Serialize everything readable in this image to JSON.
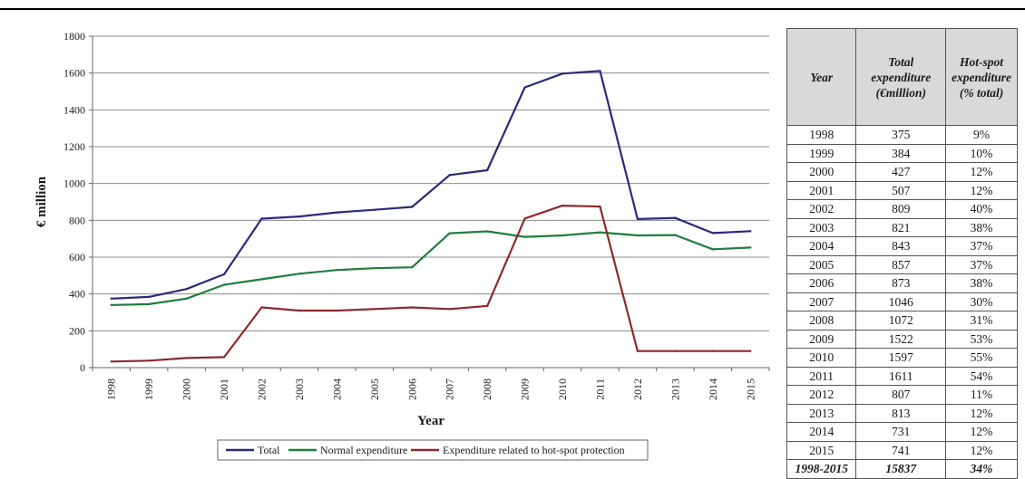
{
  "chart_data": {
    "type": "line",
    "xlabel": "Year",
    "ylabel": "€ million",
    "ylim": [
      0,
      1800
    ],
    "yticks": [
      0,
      200,
      400,
      600,
      800,
      1000,
      1200,
      1400,
      1600,
      1800
    ],
    "grid": true,
    "legend_position": "bottom",
    "categories": [
      "1998",
      "1999",
      "2000",
      "2001",
      "2002",
      "2003",
      "2004",
      "2005",
      "2006",
      "2007",
      "2008",
      "2009",
      "2010",
      "2011",
      "2012",
      "2013",
      "2014",
      "2015"
    ],
    "series": [
      {
        "name": "Total",
        "color": "#2b2a7a",
        "values": [
          375,
          384,
          427,
          507,
          809,
          821,
          843,
          857,
          873,
          1046,
          1072,
          1522,
          1597,
          1611,
          807,
          813,
          731,
          741
        ]
      },
      {
        "name": "Normal expenditure",
        "color": "#1e7f3c",
        "values": [
          340,
          345,
          375,
          450,
          480,
          510,
          530,
          540,
          545,
          730,
          740,
          710,
          718,
          735,
          718,
          720,
          643,
          652
        ]
      },
      {
        "name": "Expenditure related to hot-spot protection",
        "color": "#8c2a2e",
        "values": [
          33,
          38,
          52,
          57,
          327,
          310,
          310,
          318,
          327,
          318,
          335,
          810,
          880,
          875,
          90,
          90,
          90,
          90
        ]
      }
    ]
  },
  "table": {
    "headers": [
      "Year",
      "Total expenditure (€million)",
      "Hot-spot expenditure (% total)"
    ],
    "rows": [
      [
        "1998",
        "375",
        "9%"
      ],
      [
        "1999",
        "384",
        "10%"
      ],
      [
        "2000",
        "427",
        "12%"
      ],
      [
        "2001",
        "507",
        "12%"
      ],
      [
        "2002",
        "809",
        "40%"
      ],
      [
        "2003",
        "821",
        "38%"
      ],
      [
        "2004",
        "843",
        "37%"
      ],
      [
        "2005",
        "857",
        "37%"
      ],
      [
        "2006",
        "873",
        "38%"
      ],
      [
        "2007",
        "1046",
        "30%"
      ],
      [
        "2008",
        "1072",
        "31%"
      ],
      [
        "2009",
        "1522",
        "53%"
      ],
      [
        "2010",
        "1597",
        "55%"
      ],
      [
        "2011",
        "1611",
        "54%"
      ],
      [
        "2012",
        "807",
        "11%"
      ],
      [
        "2013",
        "813",
        "12%"
      ],
      [
        "2014",
        "731",
        "12%"
      ],
      [
        "2015",
        "741",
        "12%"
      ]
    ],
    "total_row": [
      "1998-2015",
      "15837",
      "34%"
    ]
  }
}
